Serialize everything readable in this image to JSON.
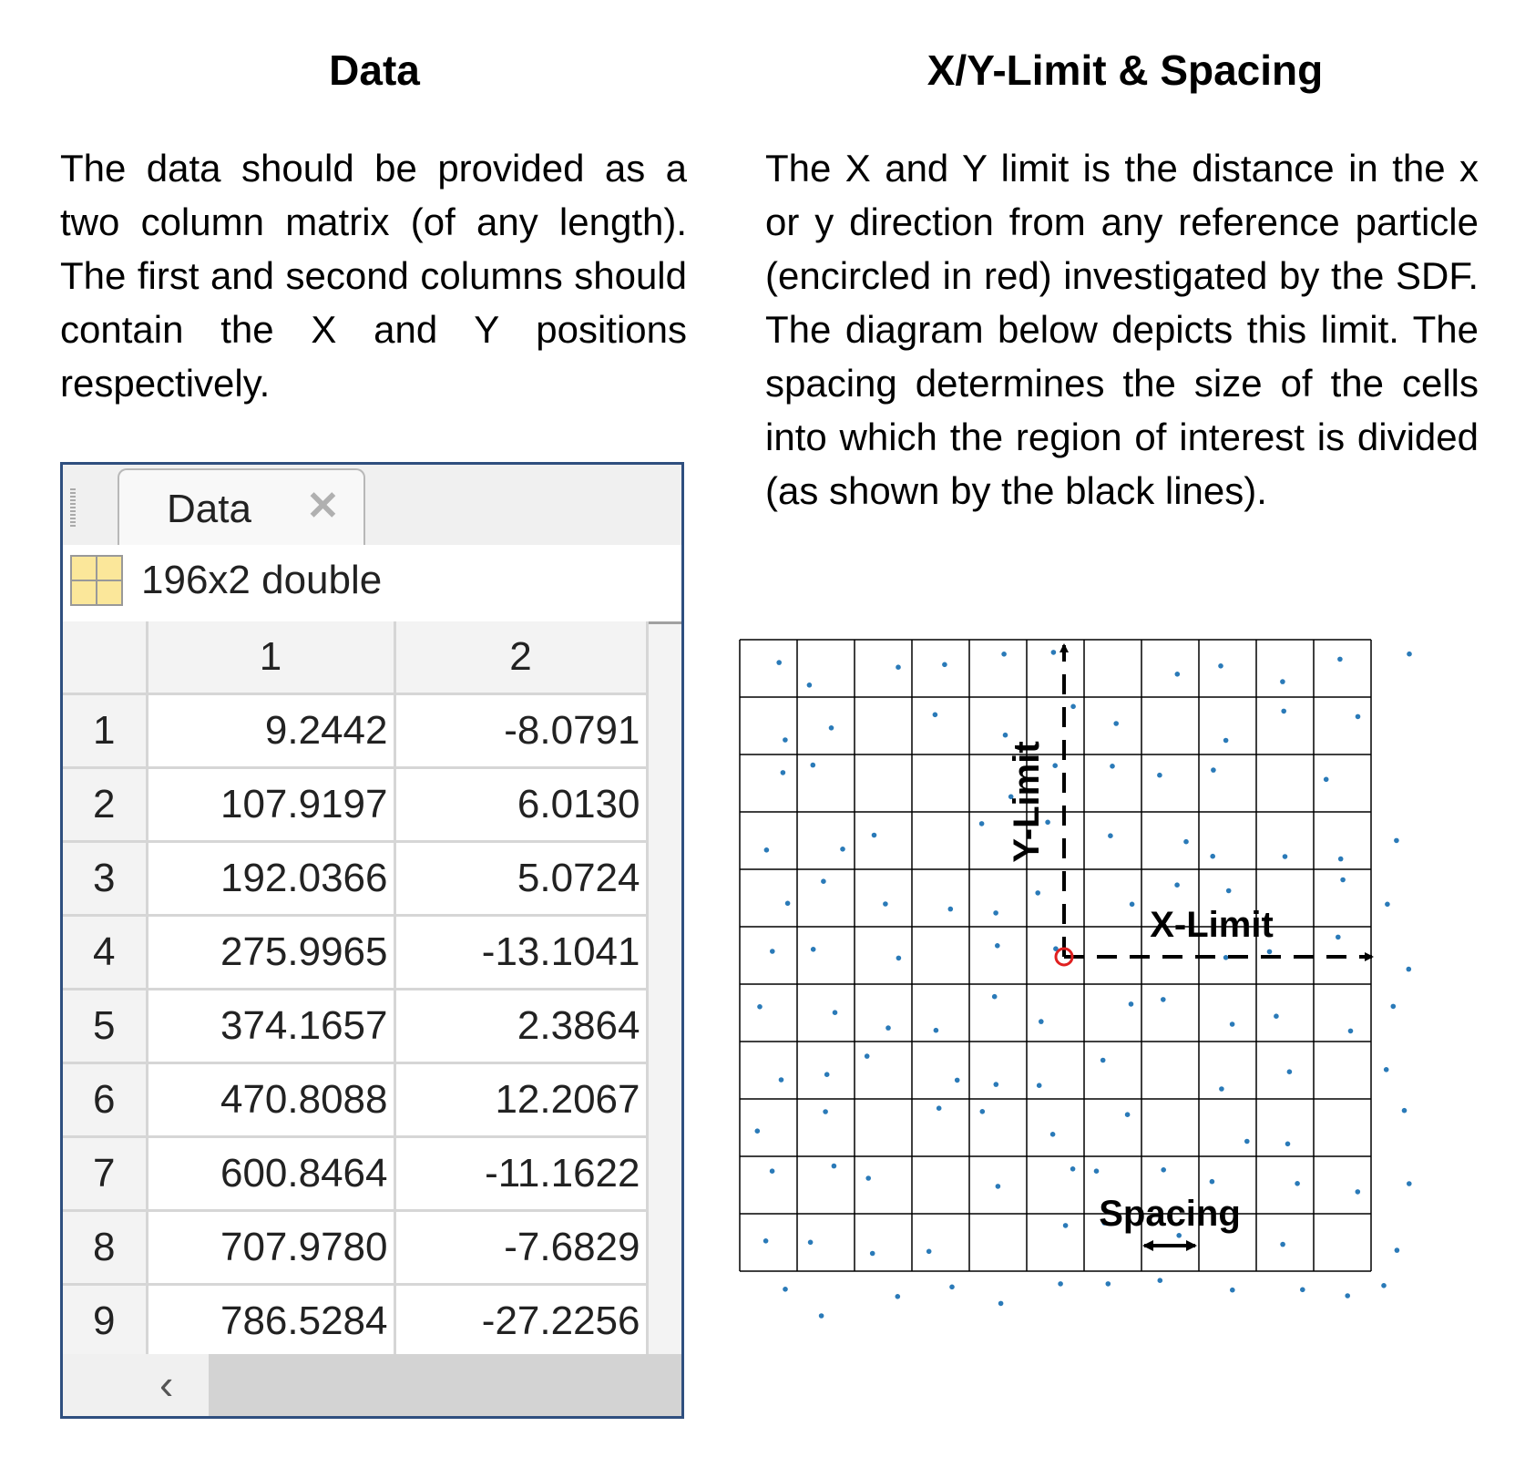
{
  "left": {
    "heading": "Data",
    "paragraph": "The data should be provided as a two column matrix (of any length).  The first and second columns should contain the X and Y positions respectively."
  },
  "right": {
    "heading": "X/Y-Limit & Spacing",
    "paragraph": "The X and Y limit is the distance in the x or y direction from any reference particle (encircled in red) investigated by the SDF.  The diagram below depicts this limit. The spacing determines the size of the cells into which the region of interest is divided (as shown by the black lines)."
  },
  "viewer": {
    "tab_label": "Data",
    "tab_close_icon": "close-icon",
    "variable_icon": "grid-icon",
    "size_label": "196x2 double",
    "column_headers": [
      "1",
      "2"
    ],
    "rows": [
      {
        "index": "1",
        "c1": "9.2442",
        "c2": "-8.0791"
      },
      {
        "index": "2",
        "c1": "107.9197",
        "c2": "6.0130"
      },
      {
        "index": "3",
        "c1": "192.0366",
        "c2": "5.0724"
      },
      {
        "index": "4",
        "c1": "275.9965",
        "c2": "-13.1041"
      },
      {
        "index": "5",
        "c1": "374.1657",
        "c2": "2.3864"
      },
      {
        "index": "6",
        "c1": "470.8088",
        "c2": "12.2067"
      },
      {
        "index": "7",
        "c1": "600.8464",
        "c2": "-11.1622"
      },
      {
        "index": "8",
        "c1": "707.9780",
        "c2": "-7.6829"
      },
      {
        "index": "9",
        "c1": "786.5284",
        "c2": "-27.2256"
      }
    ],
    "scroll_left_icon": "chevron-left-icon"
  },
  "diagram": {
    "y_limit_label": "Y-Limit",
    "x_limit_label": "X-Limit",
    "spacing_label": "Spacing",
    "grid_columns": 11,
    "grid_rows": 11,
    "particle_color": "#2a7ab8",
    "reference_color": "#e02020"
  }
}
